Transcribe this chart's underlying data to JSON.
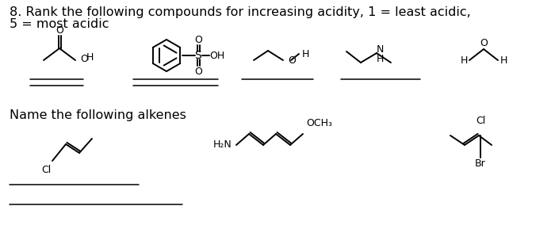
{
  "background_color": "#ffffff",
  "title_line1": "8. Rank the following compounds for increasing acidity, 1 = least acidic,",
  "title_line2": "5 = most acidic",
  "section2_title": "Name the following alkenes",
  "font_size_title": 11.5,
  "font_size_section": 11.5,
  "fig_width": 7.0,
  "fig_height": 3.13,
  "dpi": 100
}
